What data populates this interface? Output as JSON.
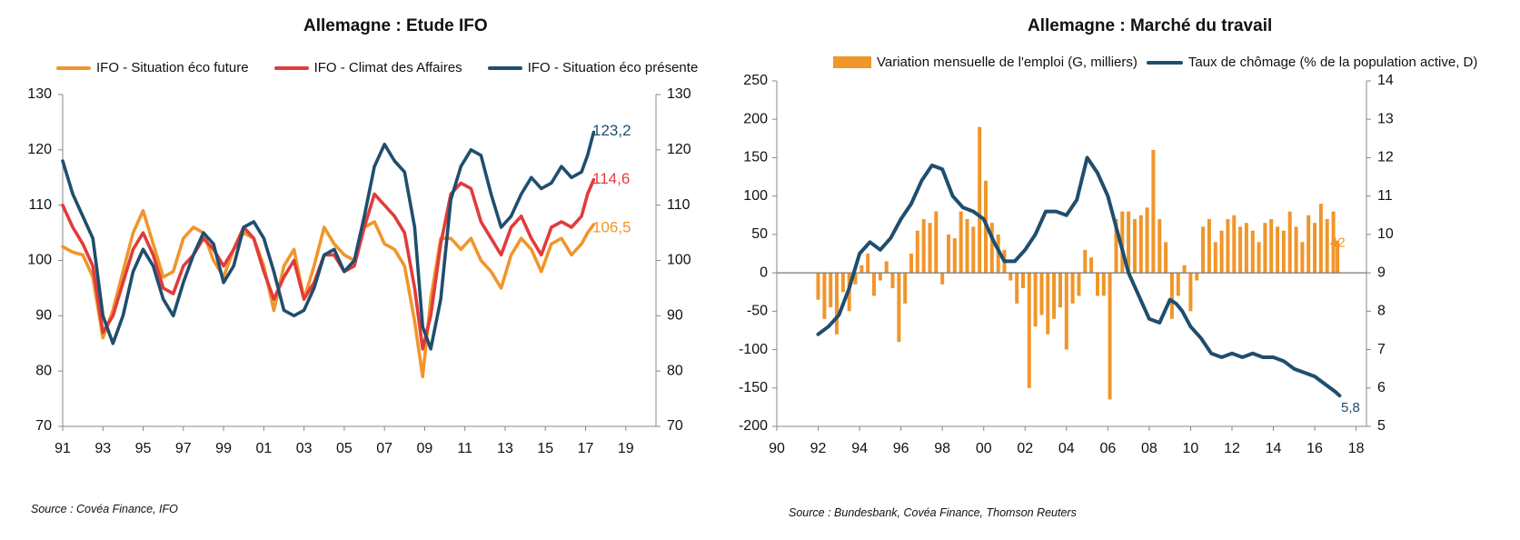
{
  "chart_data": [
    {
      "type": "line",
      "title": "Allemagne : Etude IFO",
      "xlabel": "",
      "ylabel": "",
      "x_tick_labels": [
        "91",
        "93",
        "95",
        "97",
        "99",
        "01",
        "03",
        "05",
        "07",
        "09",
        "11",
        "13",
        "15",
        "17",
        "19"
      ],
      "x_ticks": [
        1991,
        1993,
        1995,
        1997,
        1999,
        2001,
        2003,
        2005,
        2007,
        2009,
        2011,
        2013,
        2015,
        2017,
        2019
      ],
      "xlim": [
        1991,
        2020.5
      ],
      "ylim": [
        70,
        130
      ],
      "y_ticks": [
        70,
        80,
        90,
        100,
        110,
        120,
        130
      ],
      "y2lim": [
        70,
        130
      ],
      "grid": false,
      "legend": "top",
      "source": "Source : Covéa Finance, IFO",
      "series": [
        {
          "name": "IFO - Situation éco future",
          "color": "#f0962a",
          "end_label": "106,5",
          "x": [
            1991.0,
            1991.5,
            1992.0,
            1992.5,
            1993.0,
            1993.5,
            1994.0,
            1994.5,
            1995.0,
            1995.5,
            1996.0,
            1996.5,
            1997.0,
            1997.5,
            1998.0,
            1998.5,
            1999.0,
            1999.5,
            2000.0,
            2000.5,
            2001.0,
            2001.5,
            2002.0,
            2002.5,
            2003.0,
            2003.5,
            2004.0,
            2004.5,
            2005.0,
            2005.5,
            2006.0,
            2006.5,
            2007.0,
            2007.5,
            2008.0,
            2008.5,
            2008.9,
            2009.3,
            2009.8,
            2010.3,
            2010.8,
            2011.3,
            2011.8,
            2012.3,
            2012.8,
            2013.3,
            2013.8,
            2014.3,
            2014.8,
            2015.3,
            2015.8,
            2016.3,
            2016.8,
            2017.1,
            2017.4
          ],
          "values": [
            102.5,
            101.5,
            101,
            97,
            86,
            91,
            98,
            105,
            109,
            103,
            97,
            98,
            104,
            106,
            105,
            100,
            97,
            102,
            105,
            104,
            99,
            91,
            99,
            102,
            93,
            99,
            106,
            103,
            101,
            100,
            106,
            107,
            103,
            102,
            99,
            89,
            79,
            93,
            104,
            104,
            102,
            104,
            100,
            98,
            95,
            101,
            104,
            102,
            98,
            103,
            104,
            101,
            103,
            105,
            106.5
          ]
        },
        {
          "name": "IFO - Climat des Affaires",
          "color": "#e23b3b",
          "end_label": "114,6",
          "x": [
            1991.0,
            1991.5,
            1992.0,
            1992.5,
            1993.0,
            1993.5,
            1994.0,
            1994.5,
            1995.0,
            1995.5,
            1996.0,
            1996.5,
            1997.0,
            1997.5,
            1998.0,
            1998.5,
            1999.0,
            1999.5,
            2000.0,
            2000.5,
            2001.0,
            2001.5,
            2002.0,
            2002.5,
            2003.0,
            2003.5,
            2004.0,
            2004.5,
            2005.0,
            2005.5,
            2006.0,
            2006.5,
            2007.0,
            2007.5,
            2008.0,
            2008.5,
            2008.9,
            2009.3,
            2009.8,
            2010.3,
            2010.8,
            2011.3,
            2011.8,
            2012.3,
            2012.8,
            2013.3,
            2013.8,
            2014.3,
            2014.8,
            2015.3,
            2015.8,
            2016.3,
            2016.8,
            2017.1,
            2017.4
          ],
          "values": [
            110,
            106,
            103,
            99,
            87,
            90,
            96,
            102,
            105,
            101,
            95,
            94,
            99,
            101,
            104,
            102,
            99,
            102,
            106,
            104,
            98,
            93,
            97,
            100,
            93,
            96,
            101,
            101,
            98,
            99,
            106,
            112,
            110,
            108,
            105,
            95,
            84,
            90,
            103,
            112,
            114,
            113,
            107,
            104,
            101,
            106,
            108,
            104,
            101,
            106,
            107,
            106,
            108,
            112,
            114.6
          ]
        },
        {
          "name": "IFO - Situation éco présente",
          "color": "#1f4e6e",
          "end_label": "123,2",
          "x": [
            1991.0,
            1991.5,
            1992.0,
            1992.5,
            1993.0,
            1993.5,
            1994.0,
            1994.5,
            1995.0,
            1995.5,
            1996.0,
            1996.5,
            1997.0,
            1997.5,
            1998.0,
            1998.5,
            1999.0,
            1999.5,
            2000.0,
            2000.5,
            2001.0,
            2001.5,
            2002.0,
            2002.5,
            2003.0,
            2003.5,
            2004.0,
            2004.5,
            2005.0,
            2005.5,
            2006.0,
            2006.5,
            2007.0,
            2007.5,
            2008.0,
            2008.5,
            2008.9,
            2009.3,
            2009.8,
            2010.3,
            2010.8,
            2011.3,
            2011.8,
            2012.3,
            2012.8,
            2013.3,
            2013.8,
            2014.3,
            2014.8,
            2015.3,
            2015.8,
            2016.3,
            2016.8,
            2017.1,
            2017.4
          ],
          "values": [
            118,
            112,
            108,
            104,
            90,
            85,
            90,
            98,
            102,
            99,
            93,
            90,
            96,
            101,
            105,
            103,
            96,
            99,
            106,
            107,
            104,
            98,
            91,
            90,
            91,
            95,
            101,
            102,
            98,
            100,
            108,
            117,
            121,
            118,
            116,
            106,
            88,
            84,
            93,
            111,
            117,
            120,
            119,
            112,
            106,
            108,
            112,
            115,
            113,
            114,
            117,
            115,
            116,
            119,
            123.2
          ]
        }
      ]
    },
    {
      "type": "bar+line",
      "title": "Allemagne : Marché du travail",
      "x_tick_labels": [
        "90",
        "92",
        "94",
        "96",
        "98",
        "00",
        "02",
        "04",
        "06",
        "08",
        "10",
        "12",
        "14",
        "16",
        "18"
      ],
      "x_ticks": [
        1990,
        1992,
        1994,
        1996,
        1998,
        2000,
        2002,
        2004,
        2006,
        2008,
        2010,
        2012,
        2014,
        2016,
        2018
      ],
      "xlim": [
        1990,
        2018.5
      ],
      "ylim": [
        -200,
        250
      ],
      "y_ticks": [
        -200,
        -150,
        -100,
        -50,
        0,
        50,
        100,
        150,
        200,
        250
      ],
      "y2lim": [
        5,
        14
      ],
      "y2_ticks": [
        5,
        6,
        7,
        8,
        9,
        10,
        11,
        12,
        13,
        14
      ],
      "grid": false,
      "legend": "top",
      "source": "Source : Bundesbank, Covéa Finance, Thomson Reuters",
      "bar_series": {
        "name": "Variation mensuelle de l'emploi (G, milliers)",
        "color": "#f0962a",
        "end_label": "42",
        "x": [
          1992.0,
          1992.3,
          1992.6,
          1992.9,
          1993.2,
          1993.5,
          1993.8,
          1994.1,
          1994.4,
          1994.7,
          1995.0,
          1995.3,
          1995.6,
          1995.9,
          1996.2,
          1996.5,
          1996.8,
          1997.1,
          1997.4,
          1997.7,
          1998.0,
          1998.3,
          1998.6,
          1998.9,
          1999.2,
          1999.5,
          1999.8,
          2000.1,
          2000.4,
          2000.7,
          2001.0,
          2001.3,
          2001.6,
          2001.9,
          2002.2,
          2002.5,
          2002.8,
          2003.1,
          2003.4,
          2003.7,
          2004.0,
          2004.3,
          2004.6,
          2004.9,
          2005.2,
          2005.5,
          2005.8,
          2006.1,
          2006.4,
          2006.7,
          2007.0,
          2007.3,
          2007.6,
          2007.9,
          2008.2,
          2008.5,
          2008.8,
          2009.1,
          2009.4,
          2009.7,
          2010.0,
          2010.3,
          2010.6,
          2010.9,
          2011.2,
          2011.5,
          2011.8,
          2012.1,
          2012.4,
          2012.7,
          2013.0,
          2013.3,
          2013.6,
          2013.9,
          2014.2,
          2014.5,
          2014.8,
          2015.1,
          2015.4,
          2015.7,
          2016.0,
          2016.3,
          2016.6,
          2016.9,
          2017.1
        ],
        "values": [
          -35,
          -60,
          -45,
          -80,
          -25,
          -50,
          -15,
          10,
          25,
          -30,
          -10,
          15,
          -20,
          -90,
          -40,
          25,
          55,
          70,
          65,
          80,
          -15,
          50,
          45,
          80,
          70,
          60,
          190,
          120,
          65,
          50,
          30,
          -10,
          -40,
          -20,
          -150,
          -70,
          -55,
          -80,
          -60,
          -45,
          -100,
          -40,
          -30,
          30,
          20,
          -30,
          -30,
          -165,
          70,
          80,
          80,
          70,
          75,
          85,
          160,
          70,
          40,
          -60,
          -30,
          10,
          -50,
          -10,
          60,
          70,
          40,
          55,
          70,
          75,
          60,
          65,
          55,
          40,
          65,
          70,
          60,
          55,
          80,
          60,
          40,
          75,
          65,
          90,
          70,
          80,
          42
        ]
      },
      "line_series": {
        "name": "Taux de chômage (% de la population active, D)",
        "color": "#1f4e6e",
        "end_label": "5,8",
        "x": [
          1992.0,
          1992.5,
          1993.0,
          1993.5,
          1994.0,
          1994.5,
          1995.0,
          1995.5,
          1996.0,
          1996.5,
          1997.0,
          1997.5,
          1998.0,
          1998.5,
          1999.0,
          1999.5,
          2000.0,
          2000.5,
          2001.0,
          2001.5,
          2002.0,
          2002.5,
          2003.0,
          2003.5,
          2004.0,
          2004.5,
          2005.0,
          2005.5,
          2006.0,
          2006.5,
          2007.0,
          2007.5,
          2008.0,
          2008.5,
          2009.0,
          2009.3,
          2009.6,
          2010.0,
          2010.5,
          2011.0,
          2011.5,
          2012.0,
          2012.5,
          2013.0,
          2013.5,
          2014.0,
          2014.5,
          2015.0,
          2015.5,
          2016.0,
          2016.5,
          2017.0,
          2017.2
        ],
        "values": [
          7.4,
          7.6,
          7.9,
          8.6,
          9.5,
          9.8,
          9.6,
          9.9,
          10.4,
          10.8,
          11.4,
          11.8,
          11.7,
          11.0,
          10.7,
          10.6,
          10.4,
          9.8,
          9.3,
          9.3,
          9.6,
          10.0,
          10.6,
          10.6,
          10.5,
          10.9,
          12.0,
          11.6,
          11.0,
          10.0,
          9.0,
          8.4,
          7.8,
          7.7,
          8.3,
          8.2,
          8.0,
          7.6,
          7.3,
          6.9,
          6.8,
          6.9,
          6.8,
          6.9,
          6.8,
          6.8,
          6.7,
          6.5,
          6.4,
          6.3,
          6.1,
          5.9,
          5.8
        ]
      }
    }
  ]
}
